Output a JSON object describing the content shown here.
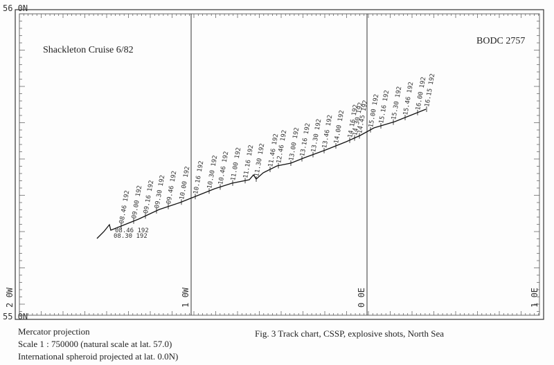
{
  "map": {
    "corner_label": "56 0N",
    "bottom_label": "55 0N",
    "cruise": "Shackleton Cruise 6/82",
    "reference": "BODC 2757",
    "meridians": [
      "2 0W",
      "1 0W",
      "0 0E",
      "1 0E"
    ],
    "start_labels": [
      "08.46 192",
      "08.30 192"
    ],
    "track_labels": [
      "08.46 192",
      "09.00 192",
      "09.16 192",
      "09.30 192",
      "09.46 192",
      "10.00 192",
      "10.16 192",
      "10.30 192",
      "10.46 192",
      "11.00 192",
      "11.16 192",
      "11.30 192",
      "11.46 192",
      "12.46 192",
      "13.00 192",
      "13.16 192",
      "13.30 192",
      "13.46 192",
      "14.00 192",
      "14.16 192",
      "14.30 192",
      "14.45 192",
      "15.00 192",
      "15.16 192",
      "15.30 192",
      "15.46 192",
      "16.00 192",
      "16.15 192"
    ]
  },
  "footer": {
    "projection": "Mercator projection",
    "scale": "Scale  1 : 750000 (natural scale at lat. 57.0)",
    "spheroid": "International spheroid projected at lat. 0.0N)",
    "caption": "Fig. 3   Track chart, CSSP, explosive shots, North Sea"
  }
}
